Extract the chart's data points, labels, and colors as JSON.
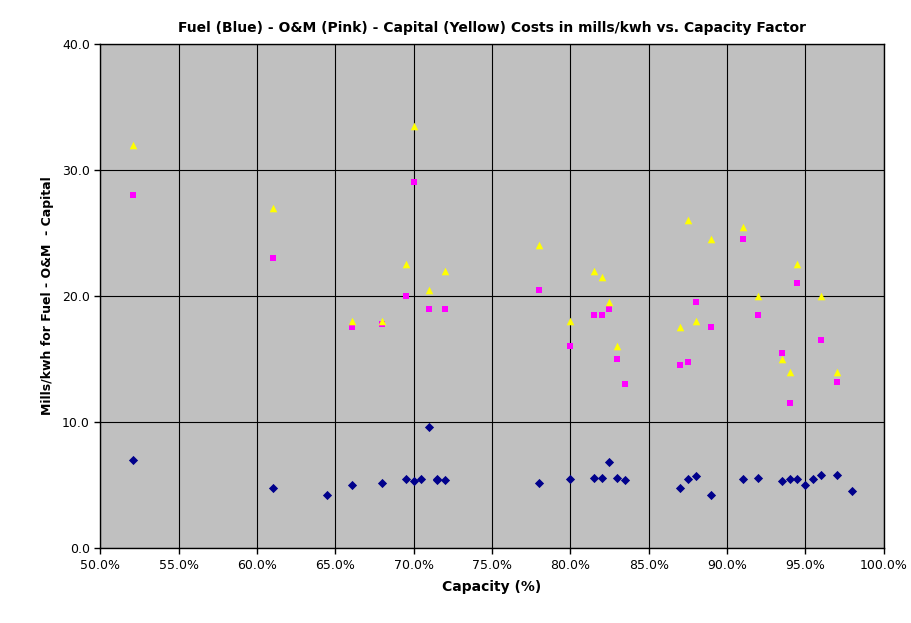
{
  "title": "Fuel (Blue) - O&M (Pink) - Capital (Yellow) Costs in mills/kwh vs. Capacity Factor",
  "xlabel": "Capacity (%)",
  "ylabel": "Mills/kwh for Fuel - O&M  - Capital",
  "xlim": [
    0.5,
    1.0
  ],
  "ylim": [
    0.0,
    40.0
  ],
  "xticks": [
    0.5,
    0.55,
    0.6,
    0.65,
    0.7,
    0.75,
    0.8,
    0.85,
    0.9,
    0.95,
    1.0
  ],
  "yticks": [
    0.0,
    10.0,
    20.0,
    30.0,
    40.0
  ],
  "plot_bg_color": "#C0C0C0",
  "grid_color": "#000000",
  "blue_x": [
    0.521,
    0.61,
    0.645,
    0.661,
    0.68,
    0.695,
    0.7,
    0.705,
    0.71,
    0.715,
    0.715,
    0.72,
    0.78,
    0.8,
    0.815,
    0.82,
    0.825,
    0.83,
    0.835,
    0.87,
    0.875,
    0.88,
    0.89,
    0.91,
    0.92,
    0.935,
    0.94,
    0.945,
    0.95,
    0.955,
    0.96,
    0.97,
    0.98
  ],
  "blue_y": [
    7.0,
    4.8,
    4.2,
    5.0,
    5.2,
    5.5,
    5.3,
    5.5,
    9.6,
    5.5,
    5.4,
    5.4,
    5.2,
    5.5,
    5.6,
    5.6,
    6.8,
    5.6,
    5.4,
    4.8,
    5.5,
    5.7,
    4.2,
    5.5,
    5.6,
    5.3,
    5.5,
    5.5,
    5.0,
    5.5,
    5.8,
    5.8,
    4.5
  ],
  "pink_x": [
    0.521,
    0.61,
    0.661,
    0.68,
    0.695,
    0.7,
    0.71,
    0.72,
    0.78,
    0.8,
    0.815,
    0.82,
    0.825,
    0.83,
    0.835,
    0.87,
    0.875,
    0.88,
    0.89,
    0.91,
    0.92,
    0.935,
    0.94,
    0.945,
    0.96,
    0.97
  ],
  "pink_y": [
    28.0,
    23.0,
    17.5,
    17.8,
    20.0,
    29.0,
    19.0,
    19.0,
    20.5,
    16.0,
    18.5,
    18.5,
    19.0,
    15.0,
    13.0,
    14.5,
    14.8,
    19.5,
    17.5,
    24.5,
    18.5,
    15.5,
    11.5,
    21.0,
    16.5,
    13.2
  ],
  "yellow_x": [
    0.521,
    0.61,
    0.661,
    0.68,
    0.695,
    0.7,
    0.71,
    0.72,
    0.78,
    0.8,
    0.815,
    0.82,
    0.825,
    0.83,
    0.87,
    0.875,
    0.88,
    0.89,
    0.91,
    0.92,
    0.935,
    0.94,
    0.945,
    0.96,
    0.97
  ],
  "yellow_y": [
    32.0,
    27.0,
    18.0,
    18.0,
    22.5,
    33.5,
    20.5,
    22.0,
    24.0,
    18.0,
    22.0,
    21.5,
    19.5,
    16.0,
    17.5,
    26.0,
    18.0,
    24.5,
    25.5,
    20.0,
    15.0,
    14.0,
    22.5,
    20.0,
    14.0
  ]
}
